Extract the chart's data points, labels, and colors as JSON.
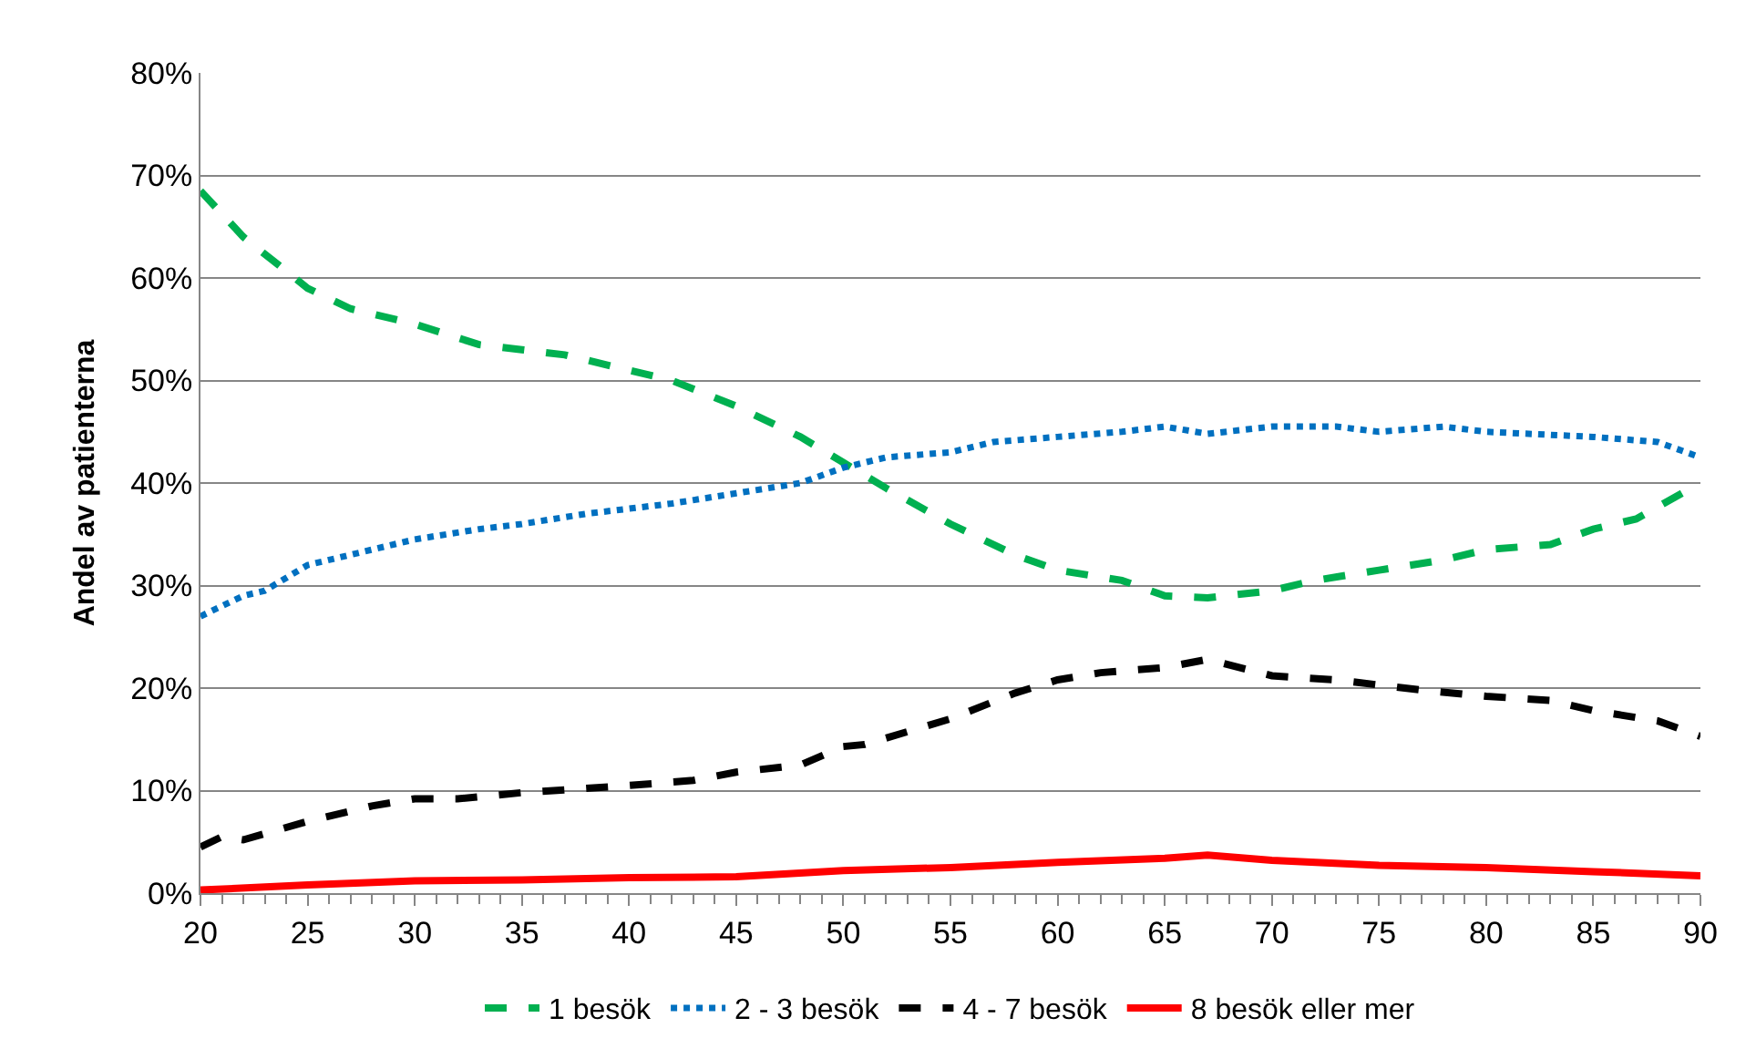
{
  "chart_data": {
    "type": "line",
    "ylabel": "Andel av patienterna",
    "xlim": [
      20,
      90
    ],
    "xticks": [
      20,
      25,
      30,
      35,
      40,
      45,
      50,
      55,
      60,
      65,
      70,
      75,
      80,
      85,
      90
    ],
    "ylim": [
      0,
      80
    ],
    "yticks": [
      {
        "value": 0,
        "label": "0%"
      },
      {
        "value": 10,
        "label": "10%"
      },
      {
        "value": 20,
        "label": "20%"
      },
      {
        "value": 30,
        "label": "30%"
      },
      {
        "value": 40,
        "label": "40%"
      },
      {
        "value": 50,
        "label": "50%"
      },
      {
        "value": 60,
        "label": "60%"
      },
      {
        "value": 70,
        "label": "70%"
      },
      {
        "value": 80,
        "label": "80%"
      }
    ],
    "grid": "y",
    "legend": "bottom",
    "marker": "none",
    "series": [
      {
        "name": "1 besök",
        "color": "#00b050",
        "line_style": "dashed",
        "x": [
          20,
          22,
          25,
          27,
          30,
          33,
          35,
          37,
          40,
          42,
          45,
          48,
          50,
          52,
          55,
          58,
          60,
          63,
          65,
          67,
          70,
          72,
          75,
          78,
          80,
          83,
          85,
          87,
          90
        ],
        "values": [
          68.5,
          64,
          59,
          57,
          55.5,
          53.5,
          53,
          52.5,
          51,
          50,
          47.5,
          44.5,
          42,
          39.5,
          36,
          33,
          31.5,
          30.5,
          29,
          28.8,
          29.5,
          30.5,
          31.5,
          32.5,
          33.5,
          34,
          35.5,
          36.5,
          40
        ]
      },
      {
        "name": "2 - 3 besök",
        "color": "#0070c0",
        "line_style": "dotted",
        "x": [
          20,
          22,
          23,
          25,
          28,
          30,
          33,
          35,
          38,
          40,
          42,
          45,
          48,
          50,
          52,
          55,
          57,
          60,
          63,
          65,
          67,
          70,
          73,
          75,
          78,
          80,
          85,
          88,
          90
        ],
        "values": [
          27,
          29,
          29.5,
          32,
          33.5,
          34.5,
          35.5,
          36,
          37,
          37.5,
          38,
          39,
          40,
          41.5,
          42.5,
          43,
          44,
          44.5,
          45,
          45.5,
          44.8,
          45.5,
          45.5,
          45,
          45.5,
          45,
          44.5,
          44,
          42.5
        ]
      },
      {
        "name": "4 - 7 besök",
        "color": "#000000",
        "line_style": "dashed",
        "x": [
          20,
          21,
          22,
          25,
          28,
          30,
          32,
          35,
          40,
          43,
          45,
          48,
          50,
          51,
          55,
          58,
          60,
          62,
          65,
          67,
          70,
          73,
          75,
          77,
          80,
          83,
          85,
          88,
          90
        ],
        "values": [
          4.5,
          5.5,
          5.2,
          7,
          8.5,
          9.2,
          9.2,
          9.8,
          10.5,
          11,
          11.8,
          12.5,
          14.3,
          14.5,
          17,
          19.5,
          20.8,
          21.5,
          22,
          22.8,
          21.2,
          20.8,
          20.3,
          19.8,
          19.2,
          18.8,
          17.8,
          16.8,
          15.3
        ]
      },
      {
        "name": "8 besök eller mer",
        "color": "#ff0000",
        "line_style": "solid",
        "x": [
          20,
          25,
          30,
          35,
          40,
          45,
          50,
          55,
          60,
          65,
          67,
          70,
          75,
          80,
          85,
          90
        ],
        "values": [
          0.3,
          0.8,
          1.2,
          1.3,
          1.5,
          1.6,
          2.2,
          2.5,
          3,
          3.4,
          3.7,
          3.2,
          2.7,
          2.5,
          2.1,
          1.7
        ]
      }
    ]
  }
}
